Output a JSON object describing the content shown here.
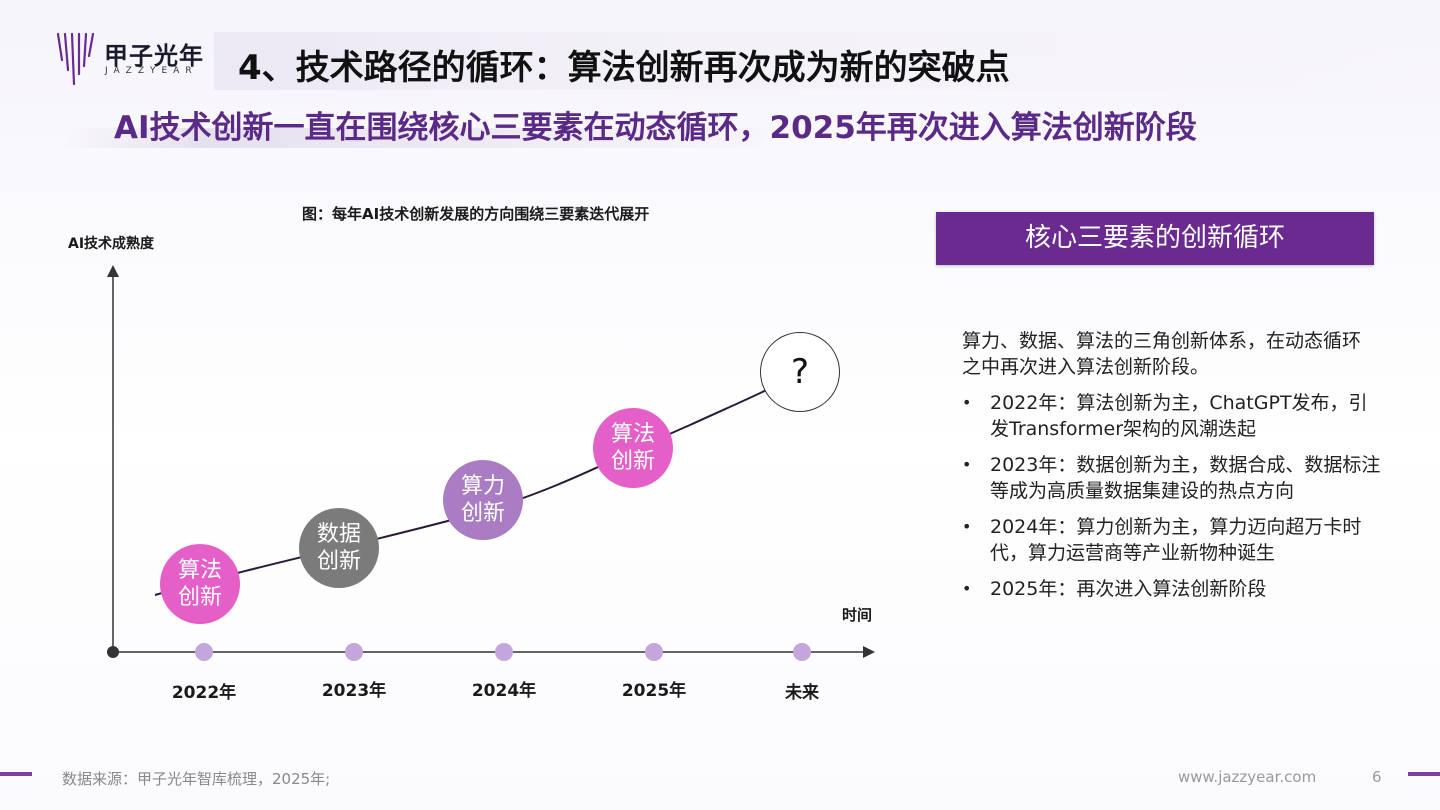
{
  "brand": {
    "logo_cn": "甲子光年",
    "logo_en": "JAZZYEAR",
    "website": "www.jazzyear.com",
    "accent_color": "#6a2a8f"
  },
  "header": {
    "title": "4、技术路径的循环：算法创新再次成为新的突破点",
    "subtitle": "AI技术创新一直在围绕核心三要素在动态循环，2025年再次进入算法创新阶段"
  },
  "diagram": {
    "title": "图：每年AI技术创新发展的方向围绕三要素迭代展开",
    "y_axis_label": "AI技术成熟度",
    "x_axis_label": "时间",
    "timeline": [
      "2022年",
      "2023年",
      "2024年",
      "2025年",
      "未来"
    ],
    "nodes": [
      {
        "label": "算法\n创新",
        "color": "#e55fc9"
      },
      {
        "label": "数据\n创新",
        "color": "#7b7b7b"
      },
      {
        "label": "算力\n创新",
        "color": "#a97cc4"
      },
      {
        "label": "算法\n创新",
        "color": "#e55fc9"
      },
      {
        "label": "?",
        "color": "#ffffff"
      }
    ]
  },
  "panel": {
    "heading": "核心三要素的创新循环",
    "intro": "算力、数据、算法的三角创新体系，在动态循环之中再次进入算法创新阶段。",
    "bullets": [
      "2022年：算法创新为主，ChatGPT发布，引发Transformer架构的风潮迭起",
      "2023年：数据创新为主，数据合成、数据标注等成为高质量数据集建设的热点方向",
      "2024年：算力创新为主，算力迈向超万卡时代，算力运营商等产业新物种诞生",
      "2025年：再次进入算法创新阶段"
    ]
  },
  "footer": {
    "source": "数据来源：甲子光年智库梳理，2025年;",
    "page_number": "6"
  }
}
